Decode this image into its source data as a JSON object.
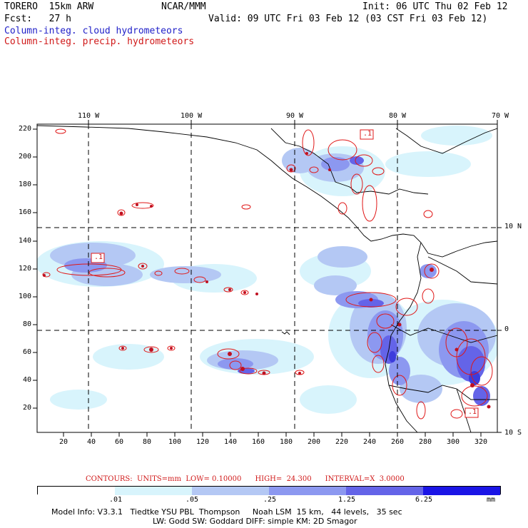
{
  "header": {
    "model": "TORERO  15km ARW",
    "center": "NCAR/MMM",
    "init": "Init: 06 UTC Thu 02 Feb 12",
    "fcst": "Fcst:   27 h",
    "valid": "Valid: 09 UTC Fri 03 Feb 12 (03 CST Fri 03 Feb 12)",
    "field_cloud": "Column-integ. cloud hydrometeors",
    "field_precip": "Column-integ. precip. hydrometeors"
  },
  "colors": {
    "cloud_text": "#1f1fc8",
    "precip_text": "#d01818",
    "contour": "#e01818",
    "shade1": "#d8f4fc",
    "shade2": "#b4c8f4",
    "shade3": "#8c98f0",
    "shade4": "#6464e8",
    "shade5": "#3c3cdc",
    "shade6": "#1a14e6"
  },
  "axes": {
    "top_longitudes": [
      "110 W",
      "100 W",
      "90 W",
      "80 W",
      "70 W"
    ],
    "right_latitudes": [
      "10 N",
      "0",
      "10 S"
    ],
    "left_grid": [
      "220",
      "200",
      "180",
      "160",
      "140",
      "120",
      "100",
      "80",
      "60",
      "40",
      "20"
    ],
    "bottom_grid": [
      "20",
      "40",
      "60",
      "80",
      "100",
      "120",
      "140",
      "160",
      "180",
      "200",
      "220",
      "240",
      "260",
      "280",
      "300",
      "320"
    ]
  },
  "contour_labels": [
    ".1",
    ".1",
    ".1"
  ],
  "contours_info": "CONTOURS:  UNITS=mm  LOW= 0.10000      HIGH=  24.300      INTERVAL=X  3.0000",
  "colorbar": {
    "labels": [
      ".01",
      ".05",
      ".25",
      "1.25",
      "6.25"
    ],
    "unit": "mm"
  },
  "footer": {
    "line1": "Model Info: V3.3.1   Tiedtke YSU PBL  Thompson     Noah LSM  15 km,   44 levels,   35 sec",
    "line2": "LW: Godd SW: Goddard DIFF: simple KM: 2D Smagor"
  }
}
